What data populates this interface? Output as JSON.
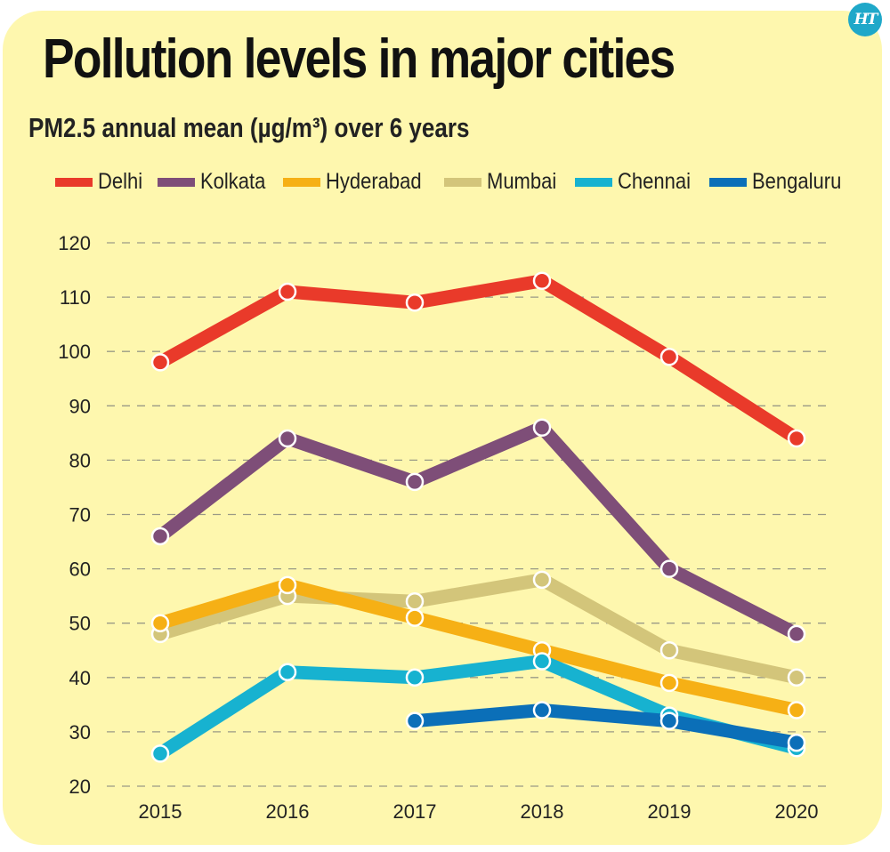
{
  "logo": {
    "text": "HT",
    "icon": "ht-logo-icon",
    "color": "#1FA8C9"
  },
  "colors": {
    "background": "#FEF7AE",
    "grid": "#9a9a86"
  },
  "chart_data": {
    "type": "line",
    "title": "Pollution levels in major cities",
    "subtitle": "PM2.5 annual mean (µg/m³) over 6 years",
    "xlabel": "",
    "ylabel": "",
    "x": [
      "2015",
      "2016",
      "2017",
      "2018",
      "2019",
      "2020"
    ],
    "yticks": [
      20,
      30,
      40,
      50,
      60,
      70,
      80,
      90,
      100,
      110,
      120
    ],
    "ylim": [
      20,
      120
    ],
    "grid": true,
    "legend_position": "top",
    "series": [
      {
        "name": "Delhi",
        "color": "#E93A2A",
        "values": [
          98,
          111,
          109,
          113,
          99,
          84
        ]
      },
      {
        "name": "Kolkata",
        "color": "#7E4E78",
        "values": [
          66,
          84,
          76,
          86,
          60,
          48
        ]
      },
      {
        "name": "Mumbai",
        "color": "#D3C57A",
        "values": [
          48,
          55,
          54,
          58,
          45,
          40
        ]
      },
      {
        "name": "Hyderabad",
        "color": "#F6B015",
        "values": [
          50,
          57,
          51,
          45,
          39,
          34
        ]
      },
      {
        "name": "Chennai",
        "color": "#17B2D0",
        "values": [
          26,
          41,
          40,
          43,
          33,
          27
        ]
      },
      {
        "name": "Bengaluru",
        "color": "#0B6FB8",
        "values": [
          null,
          null,
          32,
          34,
          32,
          28
        ]
      }
    ],
    "legend_order": [
      "Delhi",
      "Kolkata",
      "Hyderabad",
      "Mumbai",
      "Chennai",
      "Bengaluru"
    ]
  }
}
